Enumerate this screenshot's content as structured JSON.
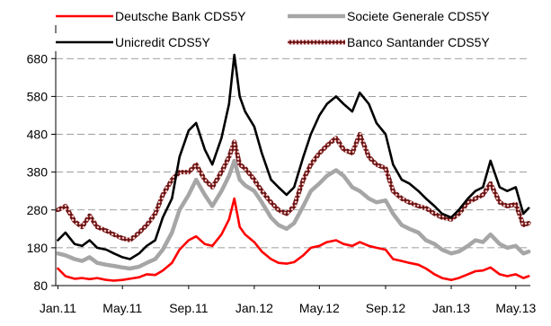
{
  "chart_data": {
    "type": "line",
    "title": "",
    "xlabel": "",
    "ylabel": "",
    "ylim": [
      80,
      740
    ],
    "yticks": [
      80,
      180,
      280,
      380,
      480,
      580,
      680
    ],
    "x_ticks": [
      "Jan.11",
      "May.11",
      "Sep.11",
      "Jan.12",
      "May.12",
      "Sep.12",
      "Jan.13",
      "May.13"
    ],
    "x_tick_dates": [
      "2011-01-01",
      "2011-05-01",
      "2011-09-01",
      "2012-01-01",
      "2012-05-01",
      "2012-09-01",
      "2013-01-01",
      "2013-05-01"
    ],
    "x_range": [
      "2010-12-28",
      "2013-05-28"
    ],
    "grid": "horizontal dashed",
    "legend_position": "top",
    "series": [
      {
        "name": "Deutsche Bank CDS5Y",
        "color": "#ff0000",
        "style": "solid",
        "points": [
          [
            "2011-01-01",
            125
          ],
          [
            "2011-01-15",
            105
          ],
          [
            "2011-02-01",
            98
          ],
          [
            "2011-02-15",
            100
          ],
          [
            "2011-03-01",
            97
          ],
          [
            "2011-03-15",
            100
          ],
          [
            "2011-04-01",
            95
          ],
          [
            "2011-04-15",
            93
          ],
          [
            "2011-05-01",
            95
          ],
          [
            "2011-05-15",
            98
          ],
          [
            "2011-06-01",
            102
          ],
          [
            "2011-06-15",
            110
          ],
          [
            "2011-07-01",
            108
          ],
          [
            "2011-07-15",
            120
          ],
          [
            "2011-08-01",
            140
          ],
          [
            "2011-08-15",
            175
          ],
          [
            "2011-09-01",
            200
          ],
          [
            "2011-09-15",
            210
          ],
          [
            "2011-10-01",
            190
          ],
          [
            "2011-10-15",
            185
          ],
          [
            "2011-11-01",
            215
          ],
          [
            "2011-11-15",
            255
          ],
          [
            "2011-11-25",
            310
          ],
          [
            "2011-12-05",
            235
          ],
          [
            "2011-12-15",
            215
          ],
          [
            "2012-01-01",
            195
          ],
          [
            "2012-01-15",
            170
          ],
          [
            "2012-02-01",
            150
          ],
          [
            "2012-02-15",
            140
          ],
          [
            "2012-03-01",
            138
          ],
          [
            "2012-03-15",
            142
          ],
          [
            "2012-04-01",
            160
          ],
          [
            "2012-04-15",
            180
          ],
          [
            "2012-05-01",
            185
          ],
          [
            "2012-05-15",
            195
          ],
          [
            "2012-06-01",
            200
          ],
          [
            "2012-06-15",
            190
          ],
          [
            "2012-07-01",
            185
          ],
          [
            "2012-07-15",
            195
          ],
          [
            "2012-08-01",
            185
          ],
          [
            "2012-08-15",
            180
          ],
          [
            "2012-09-01",
            175
          ],
          [
            "2012-09-15",
            150
          ],
          [
            "2012-10-01",
            145
          ],
          [
            "2012-10-15",
            140
          ],
          [
            "2012-11-01",
            135
          ],
          [
            "2012-11-15",
            125
          ],
          [
            "2012-12-01",
            110
          ],
          [
            "2012-12-15",
            100
          ],
          [
            "2013-01-01",
            95
          ],
          [
            "2013-01-15",
            100
          ],
          [
            "2013-02-01",
            110
          ],
          [
            "2013-02-15",
            118
          ],
          [
            "2013-03-01",
            120
          ],
          [
            "2013-03-15",
            128
          ],
          [
            "2013-04-01",
            110
          ],
          [
            "2013-04-15",
            105
          ],
          [
            "2013-05-01",
            110
          ],
          [
            "2013-05-15",
            100
          ],
          [
            "2013-05-25",
            105
          ]
        ]
      },
      {
        "name": "Societe Generale CDS5Y",
        "color": "#a6a6a6",
        "style": "thick",
        "points": [
          [
            "2011-01-01",
            165
          ],
          [
            "2011-01-15",
            160
          ],
          [
            "2011-02-01",
            150
          ],
          [
            "2011-02-15",
            145
          ],
          [
            "2011-03-01",
            155
          ],
          [
            "2011-03-15",
            140
          ],
          [
            "2011-04-01",
            135
          ],
          [
            "2011-04-15",
            132
          ],
          [
            "2011-05-01",
            128
          ],
          [
            "2011-05-15",
            125
          ],
          [
            "2011-06-01",
            130
          ],
          [
            "2011-06-15",
            140
          ],
          [
            "2011-07-01",
            150
          ],
          [
            "2011-07-15",
            175
          ],
          [
            "2011-08-01",
            220
          ],
          [
            "2011-08-15",
            280
          ],
          [
            "2011-09-01",
            320
          ],
          [
            "2011-09-15",
            360
          ],
          [
            "2011-10-01",
            320
          ],
          [
            "2011-10-15",
            290
          ],
          [
            "2011-11-01",
            330
          ],
          [
            "2011-11-15",
            370
          ],
          [
            "2011-11-25",
            410
          ],
          [
            "2011-12-05",
            360
          ],
          [
            "2011-12-15",
            345
          ],
          [
            "2012-01-01",
            330
          ],
          [
            "2012-01-15",
            300
          ],
          [
            "2012-02-01",
            260
          ],
          [
            "2012-02-15",
            240
          ],
          [
            "2012-03-01",
            230
          ],
          [
            "2012-03-15",
            245
          ],
          [
            "2012-04-01",
            290
          ],
          [
            "2012-04-15",
            330
          ],
          [
            "2012-05-01",
            350
          ],
          [
            "2012-05-15",
            370
          ],
          [
            "2012-06-01",
            385
          ],
          [
            "2012-06-15",
            370
          ],
          [
            "2012-07-01",
            340
          ],
          [
            "2012-07-15",
            330
          ],
          [
            "2012-08-01",
            310
          ],
          [
            "2012-08-15",
            300
          ],
          [
            "2012-09-01",
            305
          ],
          [
            "2012-09-15",
            270
          ],
          [
            "2012-10-01",
            240
          ],
          [
            "2012-10-15",
            230
          ],
          [
            "2012-11-01",
            220
          ],
          [
            "2012-11-15",
            200
          ],
          [
            "2012-12-01",
            190
          ],
          [
            "2012-12-15",
            175
          ],
          [
            "2013-01-01",
            165
          ],
          [
            "2013-01-15",
            170
          ],
          [
            "2013-02-01",
            185
          ],
          [
            "2013-02-15",
            200
          ],
          [
            "2013-03-01",
            195
          ],
          [
            "2013-03-15",
            215
          ],
          [
            "2013-04-01",
            190
          ],
          [
            "2013-04-15",
            180
          ],
          [
            "2013-05-01",
            185
          ],
          [
            "2013-05-15",
            165
          ],
          [
            "2013-05-25",
            170
          ]
        ]
      },
      {
        "name": "Unicredit CDS5Y",
        "color": "#000000",
        "style": "solid",
        "points": [
          [
            "2011-01-01",
            200
          ],
          [
            "2011-01-15",
            220
          ],
          [
            "2011-02-01",
            190
          ],
          [
            "2011-02-15",
            185
          ],
          [
            "2011-03-01",
            200
          ],
          [
            "2011-03-15",
            180
          ],
          [
            "2011-04-01",
            175
          ],
          [
            "2011-04-15",
            165
          ],
          [
            "2011-05-01",
            155
          ],
          [
            "2011-05-15",
            150
          ],
          [
            "2011-06-01",
            165
          ],
          [
            "2011-06-15",
            185
          ],
          [
            "2011-07-01",
            200
          ],
          [
            "2011-07-15",
            260
          ],
          [
            "2011-08-01",
            310
          ],
          [
            "2011-08-15",
            420
          ],
          [
            "2011-09-01",
            490
          ],
          [
            "2011-09-15",
            510
          ],
          [
            "2011-10-01",
            440
          ],
          [
            "2011-10-15",
            400
          ],
          [
            "2011-11-01",
            470
          ],
          [
            "2011-11-15",
            560
          ],
          [
            "2011-11-25",
            690
          ],
          [
            "2011-12-05",
            580
          ],
          [
            "2011-12-15",
            540
          ],
          [
            "2012-01-01",
            500
          ],
          [
            "2012-01-15",
            430
          ],
          [
            "2012-02-01",
            360
          ],
          [
            "2012-02-15",
            340
          ],
          [
            "2012-03-01",
            320
          ],
          [
            "2012-03-15",
            340
          ],
          [
            "2012-04-01",
            420
          ],
          [
            "2012-04-15",
            480
          ],
          [
            "2012-05-01",
            530
          ],
          [
            "2012-05-15",
            560
          ],
          [
            "2012-06-01",
            580
          ],
          [
            "2012-06-15",
            560
          ],
          [
            "2012-07-01",
            540
          ],
          [
            "2012-07-15",
            590
          ],
          [
            "2012-08-01",
            560
          ],
          [
            "2012-08-15",
            510
          ],
          [
            "2012-09-01",
            480
          ],
          [
            "2012-09-15",
            400
          ],
          [
            "2012-10-01",
            360
          ],
          [
            "2012-10-15",
            350
          ],
          [
            "2012-11-01",
            330
          ],
          [
            "2012-11-15",
            310
          ],
          [
            "2012-12-01",
            290
          ],
          [
            "2012-12-15",
            270
          ],
          [
            "2013-01-01",
            260
          ],
          [
            "2013-01-15",
            280
          ],
          [
            "2013-02-01",
            310
          ],
          [
            "2013-02-15",
            330
          ],
          [
            "2013-03-01",
            340
          ],
          [
            "2013-03-15",
            410
          ],
          [
            "2013-04-01",
            340
          ],
          [
            "2013-04-15",
            330
          ],
          [
            "2013-05-01",
            340
          ],
          [
            "2013-05-15",
            270
          ],
          [
            "2013-05-25",
            285
          ]
        ]
      },
      {
        "name": "Banco Santander CDS5Y",
        "color": "#8b2b2b",
        "style": "thick-textured",
        "points": [
          [
            "2011-01-01",
            280
          ],
          [
            "2011-01-15",
            290
          ],
          [
            "2011-02-01",
            250
          ],
          [
            "2011-02-15",
            235
          ],
          [
            "2011-03-01",
            265
          ],
          [
            "2011-03-15",
            235
          ],
          [
            "2011-04-01",
            225
          ],
          [
            "2011-04-15",
            215
          ],
          [
            "2011-05-01",
            205
          ],
          [
            "2011-05-15",
            200
          ],
          [
            "2011-06-01",
            220
          ],
          [
            "2011-06-15",
            240
          ],
          [
            "2011-07-01",
            270
          ],
          [
            "2011-07-15",
            320
          ],
          [
            "2011-08-01",
            360
          ],
          [
            "2011-08-15",
            380
          ],
          [
            "2011-09-01",
            380
          ],
          [
            "2011-09-15",
            400
          ],
          [
            "2011-10-01",
            360
          ],
          [
            "2011-10-15",
            340
          ],
          [
            "2011-11-01",
            380
          ],
          [
            "2011-11-15",
            420
          ],
          [
            "2011-11-25",
            460
          ],
          [
            "2011-12-05",
            400
          ],
          [
            "2011-12-15",
            390
          ],
          [
            "2012-01-01",
            360
          ],
          [
            "2012-01-15",
            330
          ],
          [
            "2012-02-01",
            300
          ],
          [
            "2012-02-15",
            280
          ],
          [
            "2012-03-01",
            270
          ],
          [
            "2012-03-15",
            290
          ],
          [
            "2012-04-01",
            360
          ],
          [
            "2012-04-15",
            400
          ],
          [
            "2012-05-01",
            430
          ],
          [
            "2012-05-15",
            450
          ],
          [
            "2012-06-01",
            470
          ],
          [
            "2012-06-15",
            440
          ],
          [
            "2012-07-01",
            430
          ],
          [
            "2012-07-15",
            480
          ],
          [
            "2012-08-01",
            420
          ],
          [
            "2012-08-15",
            400
          ],
          [
            "2012-09-01",
            390
          ],
          [
            "2012-09-15",
            330
          ],
          [
            "2012-10-01",
            310
          ],
          [
            "2012-10-15",
            300
          ],
          [
            "2012-11-01",
            290
          ],
          [
            "2012-11-15",
            285
          ],
          [
            "2012-12-01",
            270
          ],
          [
            "2012-12-15",
            260
          ],
          [
            "2013-01-01",
            255
          ],
          [
            "2013-01-15",
            270
          ],
          [
            "2013-02-01",
            300
          ],
          [
            "2013-02-15",
            310
          ],
          [
            "2013-03-01",
            320
          ],
          [
            "2013-03-15",
            350
          ],
          [
            "2013-04-01",
            300
          ],
          [
            "2013-04-15",
            290
          ],
          [
            "2013-05-01",
            295
          ],
          [
            "2013-05-15",
            240
          ],
          [
            "2013-05-25",
            245
          ]
        ]
      }
    ]
  }
}
